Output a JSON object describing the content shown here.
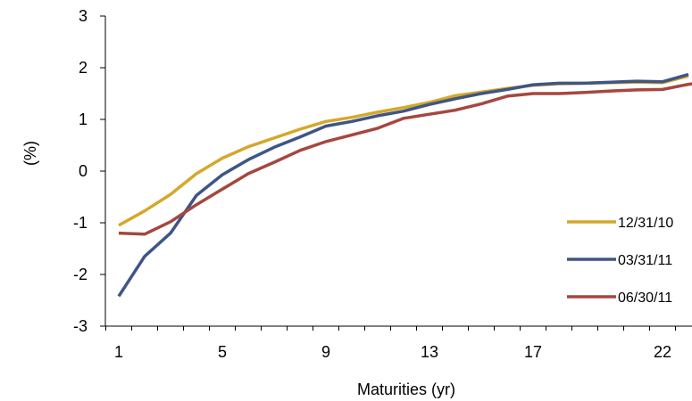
{
  "chart_data": {
    "type": "line",
    "xlabel": "Maturities (yr)",
    "ylabel": "(%)",
    "xlim": [
      1,
      24
    ],
    "ylim": [
      -3,
      3
    ],
    "x_ticks": [
      1,
      5,
      9,
      13,
      17,
      22
    ],
    "y_ticks": [
      3,
      2,
      1,
      0,
      -1,
      -2,
      -3
    ],
    "legend_position": "right",
    "x": [
      1,
      2,
      3,
      4,
      5,
      6,
      7,
      8,
      9,
      10,
      11,
      12,
      13,
      14,
      15,
      16,
      17,
      18,
      19,
      20,
      21,
      22,
      23,
      24
    ],
    "series": [
      {
        "name": "12/31/10",
        "color": "#D4A82A",
        "values": [
          -1.05,
          -0.77,
          -0.45,
          -0.05,
          0.25,
          0.47,
          0.64,
          0.81,
          0.96,
          1.04,
          1.14,
          1.23,
          1.33,
          1.46,
          1.53,
          1.6,
          1.66,
          1.69,
          1.7,
          1.71,
          1.72,
          1.71,
          1.84,
          null
        ]
      },
      {
        "name": "03/31/11",
        "color": "#3E5586",
        "values": [
          -2.42,
          -1.65,
          -1.2,
          -0.47,
          -0.07,
          0.22,
          0.46,
          0.66,
          0.87,
          0.96,
          1.07,
          1.16,
          1.29,
          1.4,
          1.5,
          1.58,
          1.67,
          1.7,
          1.7,
          1.72,
          1.74,
          1.73,
          1.87,
          null
        ]
      },
      {
        "name": "06/30/11",
        "color": "#A5473F",
        "values": [
          -1.2,
          -1.22,
          -0.98,
          -0.65,
          -0.35,
          -0.05,
          0.17,
          0.4,
          0.57,
          0.7,
          0.83,
          1.02,
          1.1,
          1.18,
          1.3,
          1.45,
          1.5,
          1.5,
          1.52,
          1.55,
          1.57,
          1.58,
          1.68,
          1.74
        ]
      }
    ]
  }
}
